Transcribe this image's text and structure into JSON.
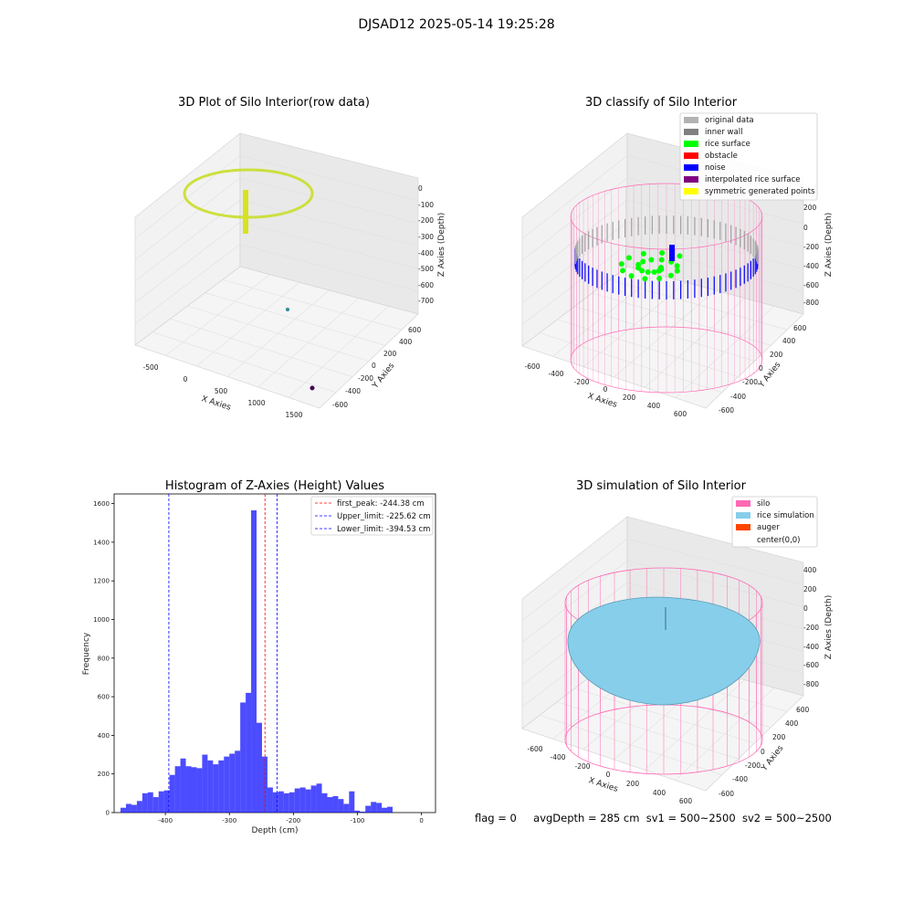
{
  "figure": {
    "suptitle": "DJSAD12 2025-05-14 19:25:28",
    "status": {
      "flag": "flag = 0",
      "avg_depth": "avgDepth = 285 cm",
      "sv1": "sv1 = 500~2500",
      "sv2": "sv2 = 500~2500"
    }
  },
  "chart_data": [
    {
      "type": "scatter3d",
      "title": "3D Plot of Silo Interior(row data)",
      "xlabel": "X Axies",
      "ylabel": "Y Axies",
      "zlabel": "Z Axies (Depth)",
      "x_ticks": [
        "-500",
        "0",
        "500",
        "1000",
        "1500"
      ],
      "y_ticks": [
        "600",
        "400",
        "200",
        "0",
        "-200",
        "-400",
        "-600"
      ],
      "z_ticks": [
        "0",
        "-100",
        "-200",
        "-300",
        "-400",
        "-500",
        "-600",
        "-700"
      ],
      "colormap": "viridis",
      "colors": {
        "low": "#2c6e8e",
        "mid": "#21a386",
        "high": "#e3e420"
      }
    },
    {
      "type": "scatter3d",
      "title": "3D classify of Silo Interior",
      "xlabel": "X Axies",
      "ylabel": "Y Axies",
      "zlabel": "Z Axies (Depth)",
      "x_ticks": [
        "-600",
        "-400",
        "-200",
        "0",
        "200",
        "400",
        "600"
      ],
      "y_ticks": [
        "600",
        "400",
        "200",
        "0",
        "-200",
        "-400",
        "-600"
      ],
      "z_ticks": [
        "200",
        "0",
        "-200",
        "-400",
        "-600",
        "-800"
      ],
      "legend": [
        {
          "label": "original data",
          "color": "#b2b2b2"
        },
        {
          "label": "inner wall",
          "color": "#808080"
        },
        {
          "label": "rice surface",
          "color": "#00ff00"
        },
        {
          "label": "obstacle",
          "color": "#ff0000"
        },
        {
          "label": "noise",
          "color": "#0000ff"
        },
        {
          "label": "interpolated rice surface",
          "color": "#800080"
        },
        {
          "label": "symmetric generated points",
          "color": "#ffff00"
        }
      ]
    },
    {
      "type": "bar",
      "title": "Histogram of Z-Axies (Height) Values",
      "xlabel": "Depth (cm)",
      "ylabel": "Frequency",
      "xlim": [
        -480,
        22
      ],
      "ylim": [
        0,
        1650
      ],
      "x_ticks": [
        -400,
        -300,
        -200,
        -100,
        0
      ],
      "y_ticks": [
        0,
        200,
        400,
        600,
        800,
        1000,
        1200,
        1400,
        1600
      ],
      "bin_start": -470,
      "bin_width": 8.5,
      "values": [
        25,
        45,
        40,
        60,
        100,
        105,
        80,
        110,
        115,
        195,
        240,
        280,
        240,
        235,
        230,
        300,
        270,
        250,
        270,
        290,
        305,
        320,
        570,
        620,
        1565,
        465,
        290,
        130,
        105,
        110,
        100,
        105,
        125,
        130,
        120,
        140,
        150,
        100,
        80,
        85,
        70,
        45,
        110,
        10,
        5,
        35,
        55,
        50,
        25,
        30
      ],
      "bar_color": "#0000ff",
      "lines": [
        {
          "label": "first_peak: -244.38 cm",
          "x": -244.38,
          "color": "#ff0000"
        },
        {
          "label": "Upper_limit: -225.62 cm",
          "x": -225.62,
          "color": "#0000ff"
        },
        {
          "label": "Lower_limit: -394.53 cm",
          "x": -394.53,
          "color": "#0000ff"
        }
      ]
    },
    {
      "type": "surface3d",
      "title": "3D simulation of Silo Interior",
      "xlabel": "X Axies",
      "ylabel": "Y Axies",
      "zlabel": "Z Axies (Depth)",
      "x_ticks": [
        "-600",
        "-400",
        "-200",
        "0",
        "200",
        "400",
        "600"
      ],
      "y_ticks": [
        "600",
        "400",
        "200",
        "0",
        "-200",
        "-400",
        "-600"
      ],
      "z_ticks": [
        "400",
        "200",
        "0",
        "-200",
        "-400",
        "-600",
        "-800"
      ],
      "legend": [
        {
          "label": "silo",
          "color": "#ff69b4"
        },
        {
          "label": "rice simulation",
          "color": "#87ceeb"
        },
        {
          "label": "auger",
          "color": "#ff4500"
        },
        {
          "label": "center(0,0)",
          "color": "#ffffff"
        }
      ]
    }
  ]
}
